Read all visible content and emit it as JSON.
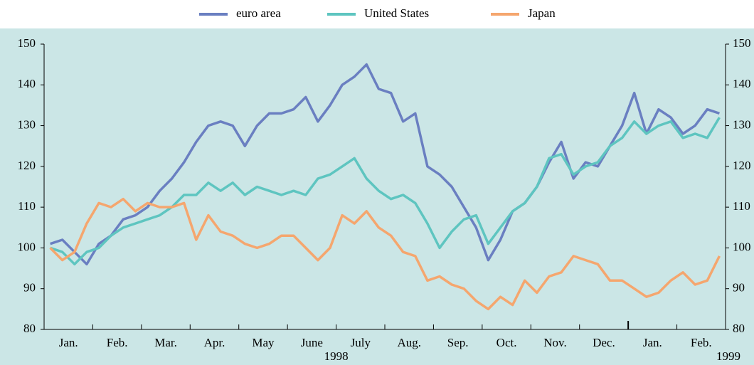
{
  "chart_data": {
    "type": "line",
    "categories": [
      null,
      "Jan.",
      null,
      null,
      null,
      "Feb.",
      null,
      null,
      null,
      "Mar.",
      null,
      null,
      null,
      "Apr.",
      null,
      null,
      null,
      "May",
      null,
      null,
      null,
      "June",
      null,
      null,
      null,
      "July",
      null,
      null,
      null,
      "Aug.",
      null,
      null,
      null,
      "Sep.",
      null,
      null,
      null,
      "Oct.",
      null,
      null,
      null,
      "Nov.",
      null,
      null,
      null,
      "Dec.",
      null,
      null,
      null,
      "Jan.",
      null,
      null,
      null,
      "Feb.",
      null,
      null
    ],
    "x_year_labels": [
      "1998",
      "1999"
    ],
    "series": [
      {
        "name": "euro area",
        "color": "#6a7fc1",
        "values": [
          101,
          102,
          99,
          96,
          101,
          103,
          107,
          108,
          110,
          114,
          117,
          121,
          126,
          130,
          131,
          130,
          125,
          130,
          133,
          133,
          134,
          137,
          131,
          135,
          140,
          142,
          145,
          139,
          138,
          131,
          133,
          120,
          118,
          115,
          110,
          105,
          97,
          102,
          109,
          111,
          115,
          121,
          126,
          117,
          121,
          120,
          125,
          130,
          138,
          128,
          134,
          132,
          128,
          130,
          134,
          133
        ]
      },
      {
        "name": "United States",
        "color": "#5ec5c0",
        "values": [
          100,
          99,
          96,
          99,
          100,
          103,
          105,
          106,
          107,
          108,
          110,
          113,
          113,
          116,
          114,
          116,
          113,
          115,
          114,
          113,
          114,
          113,
          117,
          118,
          120,
          122,
          117,
          114,
          112,
          113,
          111,
          106,
          100,
          104,
          107,
          108,
          101,
          105,
          109,
          111,
          115,
          122,
          123,
          118,
          120,
          121,
          125,
          127,
          131,
          128,
          130,
          131,
          127,
          128,
          127,
          132
        ]
      },
      {
        "name": "Japan",
        "color": "#f5a66e",
        "values": [
          100,
          97,
          99,
          106,
          111,
          110,
          112,
          109,
          111,
          110,
          110,
          111,
          102,
          108,
          104,
          103,
          101,
          100,
          101,
          103,
          103,
          100,
          97,
          100,
          108,
          106,
          109,
          105,
          103,
          99,
          98,
          92,
          93,
          91,
          90,
          87,
          85,
          88,
          86,
          92,
          89,
          93,
          94,
          98,
          97,
          96,
          92,
          92,
          90,
          88,
          89,
          92,
          94,
          91,
          92,
          98
        ]
      }
    ],
    "ylim": [
      80,
      150
    ],
    "yticks": [
      80,
      90,
      100,
      110,
      120,
      130,
      140,
      150
    ],
    "background": "#cbe6e6"
  }
}
